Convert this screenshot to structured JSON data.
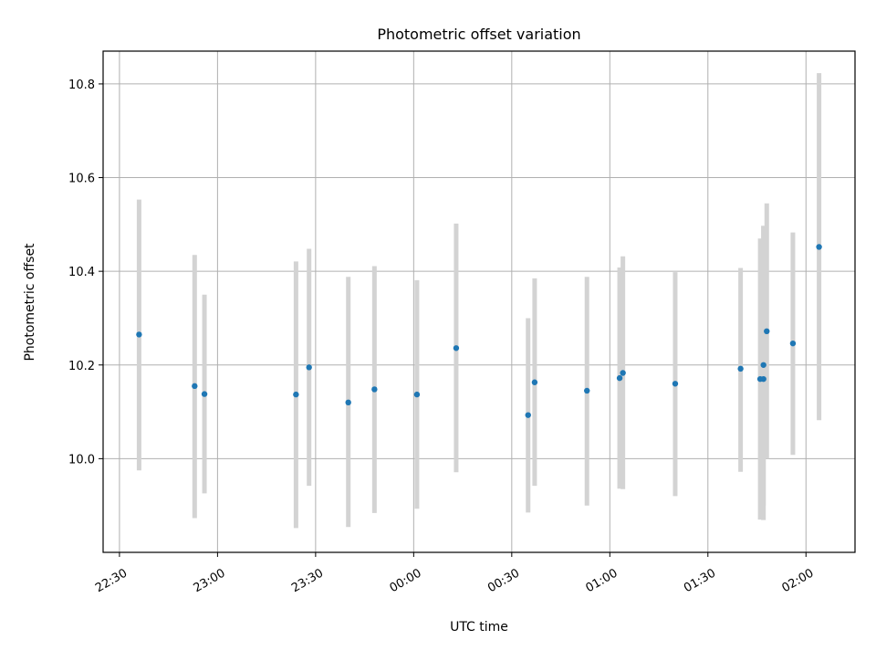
{
  "chart_data": {
    "type": "scatter",
    "title": "Photometric offset variation",
    "xlabel": "UTC time",
    "ylabel": "Photometric offset",
    "x_axis_type": "time",
    "x_tick_labels": [
      "22:30",
      "23:00",
      "23:30",
      "00:00",
      "00:30",
      "01:00",
      "01:30",
      "02:00"
    ],
    "y_tick_values": [
      10.0,
      10.2,
      10.4,
      10.6,
      10.8
    ],
    "y_tick_labels": [
      "10.0",
      "10.2",
      "10.4",
      "10.6",
      "10.8"
    ],
    "xlim": [
      "22:25",
      "02:15"
    ],
    "ylim": [
      9.8,
      10.87
    ],
    "grid": true,
    "colors": {
      "point": "#1f77b4",
      "errorbar": "#d3d3d3",
      "grid": "#b0b0b0"
    },
    "points": [
      {
        "x": "22:36",
        "y": 10.265,
        "ylow": 9.975,
        "yhigh": 10.553
      },
      {
        "x": "22:53",
        "y": 10.155,
        "ylow": 9.873,
        "yhigh": 10.435
      },
      {
        "x": "22:56",
        "y": 10.138,
        "ylow": 9.926,
        "yhigh": 10.35
      },
      {
        "x": "23:24",
        "y": 10.137,
        "ylow": 9.852,
        "yhigh": 10.421
      },
      {
        "x": "23:28",
        "y": 10.195,
        "ylow": 9.942,
        "yhigh": 10.448
      },
      {
        "x": "23:40",
        "y": 10.12,
        "ylow": 9.854,
        "yhigh": 10.388
      },
      {
        "x": "23:48",
        "y": 10.148,
        "ylow": 9.884,
        "yhigh": 10.411
      },
      {
        "x": "00:01",
        "y": 10.137,
        "ylow": 9.893,
        "yhigh": 10.381
      },
      {
        "x": "00:13",
        "y": 10.236,
        "ylow": 9.971,
        "yhigh": 10.502
      },
      {
        "x": "00:35",
        "y": 10.093,
        "ylow": 9.885,
        "yhigh": 10.3
      },
      {
        "x": "00:37",
        "y": 10.163,
        "ylow": 9.942,
        "yhigh": 10.385
      },
      {
        "x": "00:53",
        "y": 10.145,
        "ylow": 9.9,
        "yhigh": 10.388
      },
      {
        "x": "01:03",
        "y": 10.172,
        "ylow": 9.936,
        "yhigh": 10.408
      },
      {
        "x": "01:04",
        "y": 10.183,
        "ylow": 9.935,
        "yhigh": 10.432
      },
      {
        "x": "01:20",
        "y": 10.16,
        "ylow": 9.92,
        "yhigh": 10.398
      },
      {
        "x": "01:40",
        "y": 10.192,
        "ylow": 9.972,
        "yhigh": 10.407
      },
      {
        "x": "01:46",
        "y": 10.17,
        "ylow": 9.87,
        "yhigh": 10.47
      },
      {
        "x": "01:47",
        "y": 10.17,
        "ylow": 9.869,
        "yhigh": 10.497
      },
      {
        "x": "01:47",
        "y": 10.2,
        "ylow": 9.9,
        "yhigh": 10.497
      },
      {
        "x": "01:48",
        "y": 10.272,
        "ylow": 10.0,
        "yhigh": 10.545
      },
      {
        "x": "01:56",
        "y": 10.246,
        "ylow": 10.008,
        "yhigh": 10.483
      },
      {
        "x": "02:04",
        "y": 10.452,
        "ylow": 10.082,
        "yhigh": 10.823
      }
    ]
  }
}
